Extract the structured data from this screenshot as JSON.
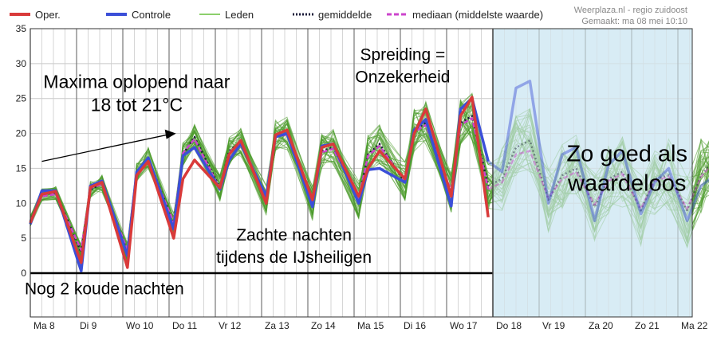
{
  "chart_data": {
    "type": "line",
    "title": "",
    "xlabel": "",
    "ylabel": "",
    "ylim": [
      0,
      35
    ],
    "yticks": [
      0,
      5,
      10,
      15,
      20,
      25,
      30,
      35
    ],
    "day_labels": [
      "Ma 8",
      "Di 9",
      "Wo 10",
      "Do 11",
      "Vr 12",
      "Za 13",
      "Zo 14",
      "Ma 15",
      "Di 16",
      "Wo 17",
      "Do 18",
      "Vr 19",
      "Za 20",
      "Zo 21",
      "Ma 22"
    ],
    "x_unit": "days after Ma 8 00:00",
    "grid": true,
    "legend_position": "top",
    "legend": {
      "oper": "Oper.",
      "controle": "Controle",
      "leden": "Leden",
      "gemiddelde": "gemiddelde",
      "mediaan": "mediaan (middelste waarde)"
    },
    "credit": {
      "line1": "Weerplaza.nl - regio zuidoost",
      "line2": "Gemaakt: ma 08 mei 10:10"
    },
    "uncertain_from_day": 10,
    "colors": {
      "oper": "#d93a3a",
      "controle": "#3b4fd8",
      "leden": "#4a9a2a",
      "gemiddelde": "#1a1a3a",
      "mediaan": "#cc44cc",
      "shade": "#d8ecf5"
    },
    "series": [
      {
        "name": "Oper.",
        "x": [
          0,
          0.25,
          0.55,
          1.1,
          1.3,
          1.55,
          2.1,
          2.3,
          2.55,
          3.1,
          3.3,
          3.55,
          4.1,
          4.3,
          4.55,
          5.1,
          5.3,
          5.55,
          6.1,
          6.3,
          6.55,
          7.1,
          7.3,
          7.55,
          8.1,
          8.3,
          8.55,
          9.1,
          9.3,
          9.55,
          9.9
        ],
        "y": [
          7.2,
          11.3,
          11.7,
          1.5,
          12.3,
          13.0,
          0.8,
          14.0,
          16.0,
          5.0,
          13.5,
          16.2,
          12.2,
          17.0,
          19.0,
          10.0,
          19.8,
          20.5,
          10.5,
          18.0,
          18.5,
          11.0,
          15.0,
          17.5,
          13.5,
          20.0,
          23.5,
          11.0,
          22.5,
          25.2,
          8.0
        ]
      },
      {
        "name": "Controle",
        "x": [
          0,
          0.25,
          0.55,
          1.1,
          1.3,
          1.55,
          2.1,
          2.3,
          2.55,
          3.1,
          3.3,
          3.55,
          4.1,
          4.3,
          4.55,
          5.1,
          5.3,
          5.55,
          6.1,
          6.3,
          6.55,
          7.1,
          7.3,
          7.55,
          8.1,
          8.3,
          8.55,
          9.1,
          9.3,
          9.55,
          9.9,
          10.2,
          10.5,
          10.8,
          11.2,
          11.5,
          11.8,
          12.2,
          12.5,
          12.8,
          13.2,
          13.5,
          13.8,
          14.2,
          14.5,
          14.8
        ],
        "y": [
          7.0,
          11.8,
          11.8,
          0.3,
          12.5,
          13.2,
          2.5,
          14.5,
          16.5,
          6.3,
          16.8,
          18.0,
          12.0,
          16.2,
          18.5,
          11.0,
          19.5,
          20.0,
          9.5,
          18.2,
          18.5,
          10.0,
          14.8,
          15.0,
          13.0,
          20.5,
          22.0,
          9.6,
          23.5,
          25.0,
          16.0,
          14.5,
          26.5,
          27.5,
          10.0,
          17.0,
          18.0,
          7.5,
          15.5,
          17.5,
          8.5,
          13.0,
          15.0,
          7.5,
          12.5,
          14.0
        ]
      },
      {
        "name": "gemiddelde",
        "x": [
          0,
          0.25,
          0.55,
          1.1,
          1.3,
          1.55,
          2.1,
          2.3,
          2.55,
          3.1,
          3.3,
          3.55,
          4.1,
          4.3,
          4.55,
          5.1,
          5.3,
          5.55,
          6.1,
          6.3,
          6.55,
          7.1,
          7.3,
          7.55,
          8.1,
          8.3,
          8.55,
          9.1,
          9.3,
          9.55,
          9.9,
          10.2,
          10.5,
          10.8,
          11.2,
          11.5,
          11.8,
          12.2,
          12.5,
          12.8,
          13.2,
          13.5,
          13.8,
          14.2,
          14.5,
          14.8
        ],
        "y": [
          7.5,
          11.2,
          11.5,
          3.0,
          12.0,
          12.8,
          3.0,
          14.5,
          16.5,
          7.0,
          17.0,
          19.5,
          12.2,
          17.5,
          18.8,
          10.5,
          19.8,
          20.0,
          10.0,
          17.5,
          18.0,
          10.5,
          17.0,
          18.5,
          13.0,
          20.5,
          21.5,
          11.5,
          21.5,
          22.5,
          12.5,
          13.5,
          18.0,
          19.0,
          10.5,
          14.0,
          15.0,
          9.5,
          13.5,
          14.5,
          9.0,
          13.5,
          14.0,
          9.0,
          14.0,
          16.5
        ]
      },
      {
        "name": "mediaan (middelste waarde)",
        "x": [
          0,
          0.25,
          0.55,
          1.1,
          1.3,
          1.55,
          2.1,
          2.3,
          2.55,
          3.1,
          3.3,
          3.55,
          4.1,
          4.3,
          4.55,
          5.1,
          5.3,
          5.55,
          6.1,
          6.3,
          6.55,
          7.1,
          7.3,
          7.55,
          8.1,
          8.3,
          8.55,
          9.1,
          9.3,
          9.55,
          9.9,
          10.2,
          10.5,
          10.8,
          11.2,
          11.5,
          11.8,
          12.2,
          12.5,
          12.8,
          13.2,
          13.5,
          13.8,
          14.2,
          14.5,
          14.8
        ],
        "y": [
          7.4,
          11.0,
          11.3,
          3.3,
          12.2,
          12.7,
          3.3,
          14.3,
          16.2,
          7.2,
          17.2,
          19.2,
          12.0,
          17.3,
          18.6,
          10.7,
          19.6,
          19.8,
          10.2,
          17.3,
          17.8,
          10.7,
          16.8,
          18.2,
          13.2,
          20.2,
          21.2,
          11.8,
          21.2,
          22.2,
          12.0,
          13.0,
          17.0,
          17.5,
          10.8,
          13.5,
          14.5,
          9.8,
          13.2,
          14.2,
          9.2,
          13.2,
          13.8,
          9.2,
          13.8,
          16.0
        ]
      }
    ],
    "annotations": [
      {
        "text": "Spreiding =",
        "x": 8.05,
        "y": 30.5,
        "size": 21
      },
      {
        "text": "Onzekerheid",
        "x": 8.05,
        "y": 27.3,
        "size": 21
      },
      {
        "text": "Maxima oplopend naar",
        "x": 2.3,
        "y": 26.5,
        "size": 23
      },
      {
        "text": "18 tot 21°C",
        "x": 2.3,
        "y": 23.2,
        "size": 23
      },
      {
        "text": "Zo goed als",
        "x": 12.9,
        "y": 16.0,
        "size": 29
      },
      {
        "text": "waardeloos",
        "x": 12.9,
        "y": 11.8,
        "size": 29
      },
      {
        "text": "Zachte nachten",
        "x": 5.7,
        "y": 4.7,
        "size": 21
      },
      {
        "text": "tijdens de IJsheiligen",
        "x": 5.7,
        "y": 1.5,
        "size": 21
      },
      {
        "text": "Nog 2 koude nachten",
        "x": 1.6,
        "y": -3.0,
        "size": 21
      }
    ]
  }
}
